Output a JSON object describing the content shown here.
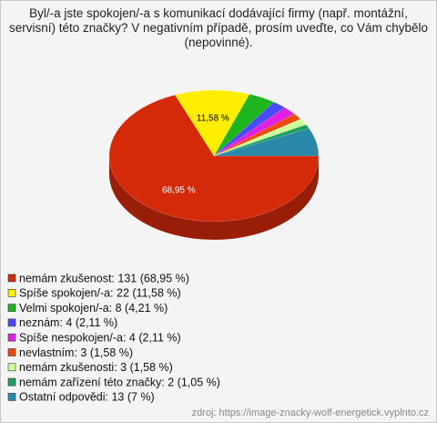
{
  "chart_data": {
    "type": "pie",
    "title": "Byl/-a jste spokojen/-a s komunikací dodávající firmy (např. montážní, servisní) této značky? V negativním případě, prosím uveďte, co Vám chybělo (nepovinné).",
    "categories": [
      "nemám zkušenost",
      "Spíše spokojen/-a",
      "Velmi spokojen/-a",
      "neznám",
      "Spíše nespokojen/-a",
      "nevlastním",
      "nemám zkušenosti",
      "nemám zařízení této značky",
      "Ostatní odpovědi"
    ],
    "values": [
      131,
      22,
      8,
      4,
      4,
      3,
      3,
      2,
      13
    ],
    "value_labels": [
      "68,95 %",
      "11,58 %",
      null,
      null,
      null,
      null,
      null,
      null,
      null
    ],
    "legend": [
      "nemám zkušenost: 131 (68,95 %)",
      "Spíše spokojen/-a: 22 (11,58 %)",
      "Velmi spokojen/-a: 8 (4,21 %)",
      "neznám: 4 (2,11 %)",
      "Spíše nespokojen/-a: 4 (2,11 %)",
      "nevlastním: 3 (1,58 %)",
      "nemám zkušenosti: 3 (1,58 %)",
      "nemám zařízení této značky: 2 (1,05 %)",
      "Ostatní odpovědi: 13 (7 %)"
    ],
    "colors": [
      "#d42a0a",
      "#ffee00",
      "#1fb51f",
      "#4a4aff",
      "#e020e0",
      "#ee4a10",
      "#ccff99",
      "#20a060",
      "#2a88a8"
    ],
    "source": "zdroj: https://image-znacky-wolf-energetick.vyplnto.cz"
  }
}
